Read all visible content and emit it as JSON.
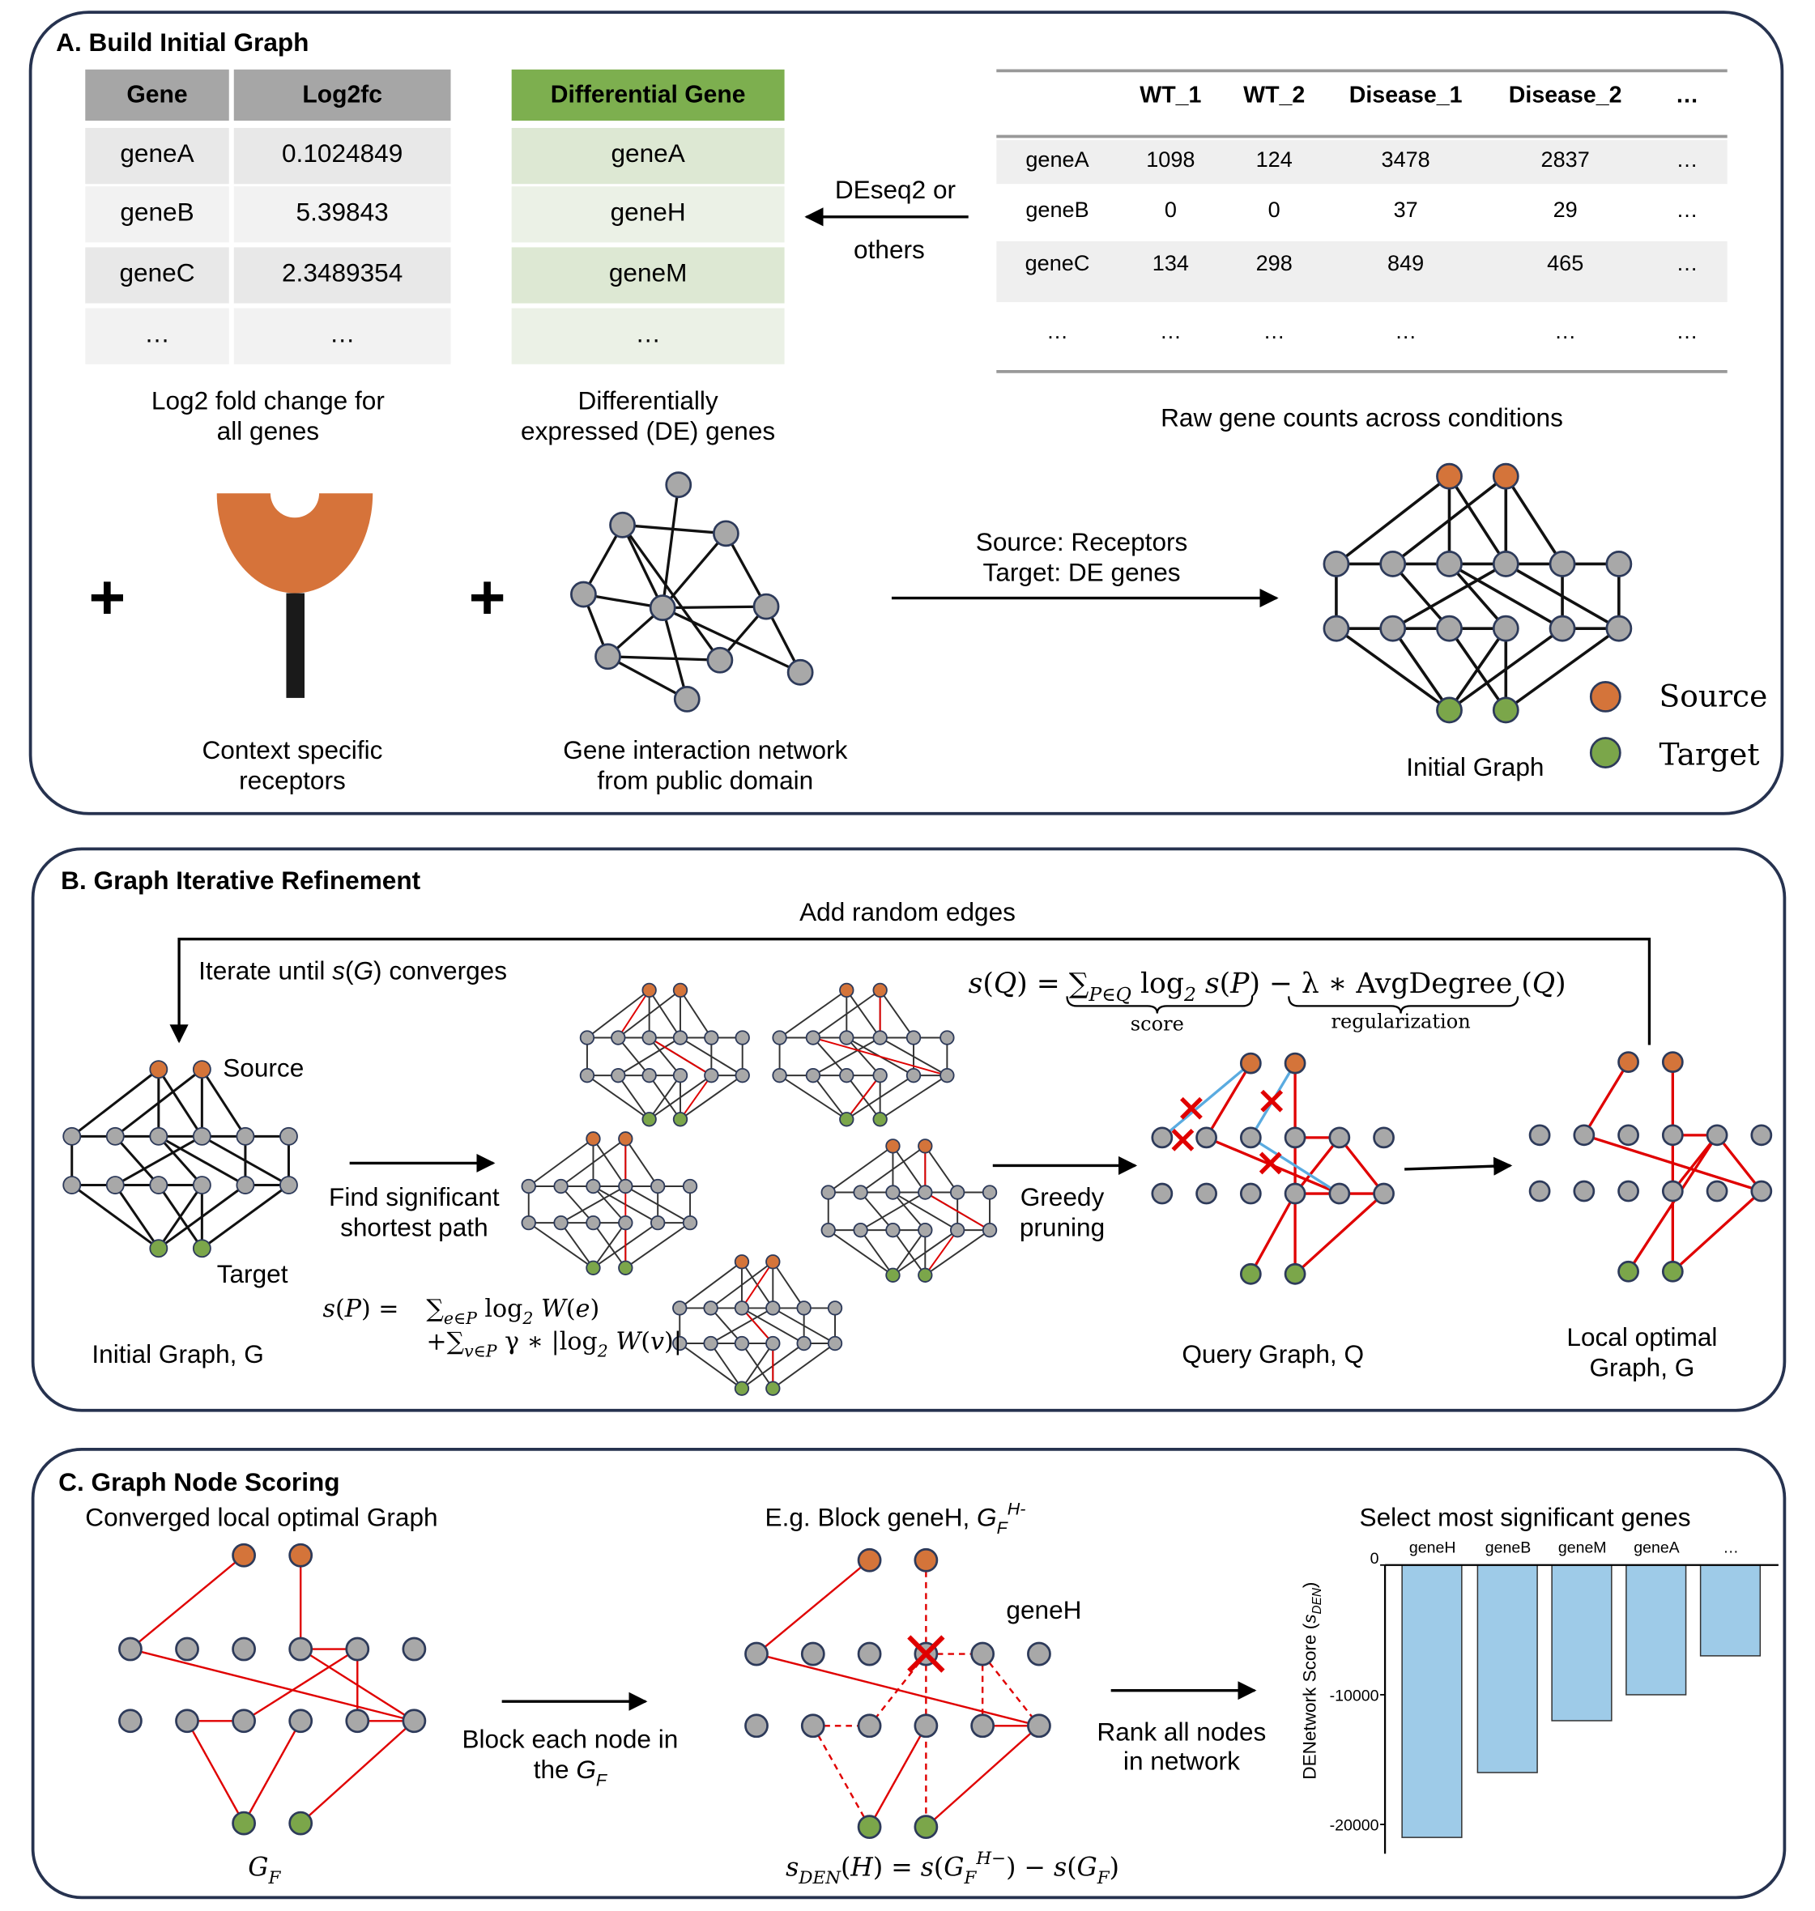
{
  "panels": {
    "a_title": "A. Build Initial Graph",
    "b_title": "B. Graph Iterative Refinement",
    "c_title": "C. Graph Node Scoring"
  },
  "a": {
    "table_fc": {
      "headers": [
        "Gene",
        "Log2fc"
      ],
      "rows": [
        [
          "geneA",
          "0.1024849"
        ],
        [
          "geneB",
          "5.39843"
        ],
        [
          "geneC",
          "2.3489354"
        ],
        [
          "…",
          "…"
        ]
      ]
    },
    "caption_fc": [
      "Log2 fold change for",
      "all genes"
    ],
    "table_de": {
      "header": "Differential Gene",
      "rows": [
        "geneA",
        "geneH",
        "geneM",
        "…"
      ]
    },
    "caption_de": [
      "Differentially",
      "expressed (DE) genes"
    ],
    "deseq": [
      "DEseq2 or",
      "others"
    ],
    "counts": {
      "headers": [
        "WT_1",
        "WT_2",
        "Disease_1",
        "Disease_2",
        "…"
      ],
      "rows": [
        [
          "geneA",
          "1098",
          "124",
          "3478",
          "2837",
          "…"
        ],
        [
          "geneB",
          "0",
          "0",
          "37",
          "29",
          "…"
        ],
        [
          "geneC",
          "134",
          "298",
          "849",
          "465",
          "…"
        ],
        [
          "…",
          "…",
          "…",
          "…",
          "…",
          "…"
        ]
      ]
    },
    "caption_counts": "Raw gene counts across conditions",
    "plus": "+",
    "caption_receptors": [
      "Context specific",
      "receptors"
    ],
    "caption_network": [
      "Gene interaction network",
      "from public domain"
    ],
    "arrow_label": [
      "Source: Receptors",
      "Target: DE genes"
    ],
    "initial_graph_label": "Initial Graph",
    "legend": {
      "source": "Source",
      "target": "Target"
    }
  },
  "b": {
    "add_random_edges": "Add random edges",
    "iterate": [
      [
        "Iterate until ",
        ""
      ],
      [
        "s",
        "i"
      ],
      [
        "(",
        ""
      ],
      [
        "G",
        "i"
      ],
      [
        ") converges",
        ""
      ]
    ],
    "source": "Source",
    "target": "Target",
    "initial_graph": "Initial Graph, G",
    "find_path": [
      "Find significant",
      "shortest path"
    ],
    "greedy": [
      "Greedy",
      "pruning"
    ],
    "sp_lhs": [
      [
        "s",
        "i"
      ],
      [
        "(",
        ""
      ],
      [
        "P",
        "i"
      ],
      [
        ") =",
        ""
      ]
    ],
    "sp_line1": [
      [
        "∑",
        ""
      ],
      [
        "e∈P",
        "sub"
      ],
      [
        " log",
        ""
      ],
      [
        "2",
        "sub"
      ],
      [
        " W",
        "i"
      ],
      [
        "(",
        ""
      ],
      [
        "e",
        "i"
      ],
      [
        ")",
        ""
      ]
    ],
    "sp_line2": [
      [
        "+∑",
        ""
      ],
      [
        "v∈P",
        "sub"
      ],
      [
        " γ ∗ |log",
        ""
      ],
      [
        "2",
        "sub"
      ],
      [
        " W",
        "i"
      ],
      [
        "(",
        ""
      ],
      [
        "v",
        "i"
      ],
      [
        ")|",
        ""
      ]
    ],
    "sq": [
      [
        "s",
        "i"
      ],
      [
        "(",
        ""
      ],
      [
        "Q",
        "i"
      ],
      [
        ") = ∑",
        ""
      ],
      [
        "P∈Q",
        "sub"
      ],
      [
        " log",
        ""
      ],
      [
        "2",
        "sub"
      ],
      [
        " s",
        "i"
      ],
      [
        "(",
        ""
      ],
      [
        "P",
        "i"
      ],
      [
        ") − λ ∗ AvgDegree (",
        ""
      ],
      [
        "Q",
        "i"
      ],
      [
        ")",
        ""
      ]
    ],
    "score": "score",
    "regularization": "regularization",
    "query_graph": "Query Graph, Q",
    "local_optimal": [
      "Local optimal",
      "Graph, G"
    ]
  },
  "c": {
    "converged": "Converged local optimal Graph",
    "gf": [
      [
        "G",
        "i"
      ],
      [
        "F",
        "sub"
      ]
    ],
    "block_each": "Block each node in",
    "the_gf": [
      [
        "the ",
        ""
      ],
      [
        "G",
        "i"
      ],
      [
        "F",
        "sub"
      ]
    ],
    "block_example": [
      [
        "E.g. Block geneH, ",
        ""
      ],
      [
        "G",
        "i"
      ],
      [
        "F",
        "sub"
      ],
      [
        "H-",
        "sup"
      ]
    ],
    "geneh": "geneH",
    "sden": [
      [
        "s",
        "i"
      ],
      [
        "DEN",
        "sub"
      ],
      [
        "(",
        ""
      ],
      [
        "H",
        "i"
      ],
      [
        ") = ",
        ""
      ],
      [
        "s",
        "i"
      ],
      [
        "(",
        ""
      ],
      [
        "G",
        "i"
      ],
      [
        "F",
        "sub"
      ],
      [
        "H−",
        "sup"
      ],
      [
        ") − ",
        ""
      ],
      [
        "s",
        "i"
      ],
      [
        "(",
        ""
      ],
      [
        "G",
        "i"
      ],
      [
        "F",
        "sub"
      ],
      [
        ")",
        ""
      ]
    ],
    "rank": [
      "Rank all nodes",
      "in network"
    ]
  },
  "chart_data": {
    "type": "bar",
    "title": "Select most significant genes",
    "categories": [
      "geneH",
      "geneB",
      "geneM",
      "geneA",
      "…"
    ],
    "values": [
      -21000,
      -16000,
      -12000,
      -10000,
      -7000
    ],
    "ylabel": [
      [
        "DENetwork Score (",
        ""
      ],
      [
        "s",
        "i"
      ],
      [
        "DEN",
        "sub"
      ],
      [
        ")",
        ""
      ]
    ],
    "yticks": [
      0,
      -10000,
      -20000
    ],
    "ytick_labels": [
      "0",
      "-10000",
      "-20000"
    ],
    "ylim": [
      -22000,
      0
    ],
    "bar_color": "#9ecbe8"
  },
  "colors": {
    "source": "#d4743a",
    "target": "#7ba64a",
    "node": "#a8a8a8",
    "edge_red": "#e00000",
    "edge_blue": "#5aabe0",
    "panel_border": "#26324f",
    "header_gray": "#a6a6a6",
    "header_green": "#7daf4f"
  }
}
